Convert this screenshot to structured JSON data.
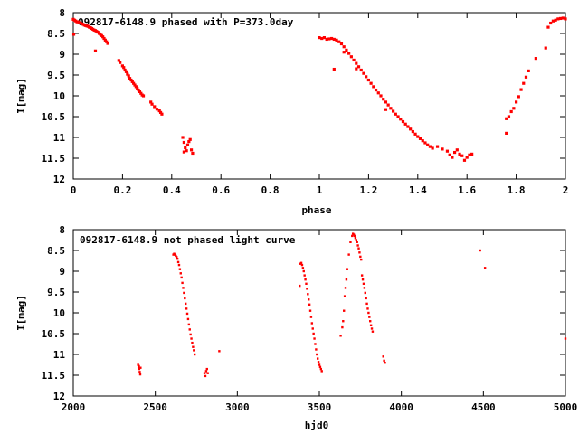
{
  "chart_data": [
    {
      "type": "scatter",
      "title": "092817-6148.9 phased with P=373.0day",
      "xlabel": "phase",
      "ylabel": "I[mag]",
      "xlim": [
        0,
        2
      ],
      "ylim": [
        8,
        12
      ],
      "y_inverted": true,
      "x_ticks": [
        "0",
        "0.2",
        "0.4",
        "0.6",
        "0.8",
        "1",
        "1.2",
        "1.4",
        "1.6",
        "1.8",
        "2"
      ],
      "y_ticks": [
        "8",
        "8.5",
        "9",
        "9.5",
        "10",
        "10.5",
        "11",
        "11.5",
        "12"
      ],
      "grid": false,
      "marker_color": "#ff0000",
      "series": [
        {
          "points": [
            [
              0.0,
              8.16
            ],
            [
              0.005,
              8.18
            ],
            [
              0.01,
              8.2
            ],
            [
              0.015,
              8.22
            ],
            [
              0.02,
              8.22
            ],
            [
              0.025,
              8.24
            ],
            [
              0.03,
              8.25
            ],
            [
              0.035,
              8.27
            ],
            [
              0.04,
              8.28
            ],
            [
              0.045,
              8.3
            ],
            [
              0.05,
              8.31
            ],
            [
              0.055,
              8.32
            ],
            [
              0.06,
              8.33
            ],
            [
              0.065,
              8.35
            ],
            [
              0.07,
              8.36
            ],
            [
              0.075,
              8.38
            ],
            [
              0.08,
              8.4
            ],
            [
              0.085,
              8.42
            ],
            [
              0.09,
              8.43
            ],
            [
              0.095,
              8.45
            ],
            [
              0.1,
              8.47
            ],
            [
              0.105,
              8.5
            ],
            [
              0.11,
              8.52
            ],
            [
              0.115,
              8.55
            ],
            [
              0.12,
              8.58
            ],
            [
              0.125,
              8.62
            ],
            [
              0.13,
              8.66
            ],
            [
              0.135,
              8.7
            ],
            [
              0.14,
              8.74
            ],
            [
              0.002,
              8.52
            ],
            [
              0.09,
              8.92
            ],
            [
              0.185,
              9.15
            ],
            [
              0.19,
              9.2
            ],
            [
              0.2,
              9.28
            ],
            [
              0.205,
              9.32
            ],
            [
              0.21,
              9.38
            ],
            [
              0.215,
              9.42
            ],
            [
              0.22,
              9.48
            ],
            [
              0.225,
              9.52
            ],
            [
              0.23,
              9.58
            ],
            [
              0.235,
              9.62
            ],
            [
              0.24,
              9.66
            ],
            [
              0.245,
              9.7
            ],
            [
              0.25,
              9.74
            ],
            [
              0.255,
              9.78
            ],
            [
              0.26,
              9.82
            ],
            [
              0.265,
              9.86
            ],
            [
              0.27,
              9.9
            ],
            [
              0.275,
              9.94
            ],
            [
              0.28,
              9.98
            ],
            [
              0.285,
              10.0
            ],
            [
              0.315,
              10.15
            ],
            [
              0.32,
              10.2
            ],
            [
              0.33,
              10.26
            ],
            [
              0.34,
              10.32
            ],
            [
              0.35,
              10.36
            ],
            [
              0.355,
              10.4
            ],
            [
              0.36,
              10.44
            ],
            [
              0.445,
              11.0
            ],
            [
              0.45,
              11.12
            ],
            [
              0.455,
              11.25
            ],
            [
              0.46,
              11.32
            ],
            [
              0.465,
              11.18
            ],
            [
              0.47,
              11.1
            ],
            [
              0.475,
              11.05
            ],
            [
              0.48,
              11.3
            ],
            [
              0.485,
              11.38
            ],
            [
              0.45,
              11.35
            ],
            [
              1.0,
              8.6
            ],
            [
              1.01,
              8.62
            ],
            [
              1.02,
              8.6
            ],
            [
              1.03,
              8.64
            ],
            [
              1.04,
              8.63
            ],
            [
              1.05,
              8.62
            ],
            [
              1.06,
              8.64
            ],
            [
              1.07,
              8.66
            ],
            [
              1.08,
              8.7
            ],
            [
              1.09,
              8.75
            ],
            [
              1.1,
              8.82
            ],
            [
              1.11,
              8.9
            ],
            [
              1.12,
              8.98
            ],
            [
              1.13,
              9.06
            ],
            [
              1.14,
              9.14
            ],
            [
              1.15,
              9.22
            ],
            [
              1.16,
              9.3
            ],
            [
              1.17,
              9.38
            ],
            [
              1.18,
              9.46
            ],
            [
              1.19,
              9.54
            ],
            [
              1.2,
              9.62
            ],
            [
              1.21,
              9.7
            ],
            [
              1.22,
              9.78
            ],
            [
              1.23,
              9.86
            ],
            [
              1.24,
              9.93
            ],
            [
              1.25,
              10.0
            ],
            [
              1.26,
              10.08
            ],
            [
              1.27,
              10.15
            ],
            [
              1.28,
              10.22
            ],
            [
              1.29,
              10.3
            ],
            [
              1.3,
              10.37
            ],
            [
              1.31,
              10.44
            ],
            [
              1.32,
              10.5
            ],
            [
              1.33,
              10.56
            ],
            [
              1.34,
              10.62
            ],
            [
              1.35,
              10.68
            ],
            [
              1.36,
              10.74
            ],
            [
              1.37,
              10.8
            ],
            [
              1.38,
              10.86
            ],
            [
              1.39,
              10.92
            ],
            [
              1.4,
              10.98
            ],
            [
              1.41,
              11.03
            ],
            [
              1.42,
              11.08
            ],
            [
              1.43,
              11.13
            ],
            [
              1.44,
              11.18
            ],
            [
              1.45,
              11.22
            ],
            [
              1.46,
              11.26
            ],
            [
              1.06,
              9.36
            ],
            [
              1.27,
              10.33
            ],
            [
              1.1,
              8.95
            ],
            [
              1.15,
              9.35
            ],
            [
              1.48,
              11.22
            ],
            [
              1.5,
              11.28
            ],
            [
              1.52,
              11.33
            ],
            [
              1.53,
              11.42
            ],
            [
              1.54,
              11.48
            ],
            [
              1.55,
              11.36
            ],
            [
              1.56,
              11.3
            ],
            [
              1.57,
              11.4
            ],
            [
              1.58,
              11.44
            ],
            [
              1.59,
              11.55
            ],
            [
              1.6,
              11.48
            ],
            [
              1.61,
              11.42
            ],
            [
              1.62,
              11.4
            ],
            [
              1.76,
              10.9
            ],
            [
              1.76,
              10.55
            ],
            [
              1.77,
              10.5
            ],
            [
              1.78,
              10.38
            ],
            [
              1.79,
              10.3
            ],
            [
              1.8,
              10.15
            ],
            [
              1.81,
              10.02
            ],
            [
              1.82,
              9.85
            ],
            [
              1.83,
              9.7
            ],
            [
              1.84,
              9.55
            ],
            [
              1.85,
              9.4
            ],
            [
              1.88,
              9.1
            ],
            [
              1.92,
              8.85
            ],
            [
              1.93,
              8.35
            ],
            [
              1.94,
              8.25
            ],
            [
              1.95,
              8.2
            ],
            [
              1.96,
              8.18
            ],
            [
              1.97,
              8.15
            ],
            [
              1.98,
              8.14
            ],
            [
              1.99,
              8.13
            ],
            [
              2.0,
              8.15
            ]
          ]
        }
      ]
    },
    {
      "type": "scatter",
      "title": "092817-6148.9 not phased light curve",
      "xlabel": "hjd0",
      "ylabel": "I[mag]",
      "xlim": [
        2000,
        5000
      ],
      "ylim": [
        8,
        12
      ],
      "y_inverted": true,
      "x_ticks": [
        "2000",
        "2500",
        "3000",
        "3500",
        "4000",
        "4500",
        "5000"
      ],
      "y_ticks": [
        "8",
        "8.5",
        "9",
        "9.5",
        "10",
        "10.5",
        "11",
        "11.5",
        "12"
      ],
      "grid": false,
      "marker_color": "#ff0000",
      "series": [
        {
          "points": [
            [
              2395,
              11.25
            ],
            [
              2398,
              11.3
            ],
            [
              2400,
              11.28
            ],
            [
              2402,
              11.35
            ],
            [
              2405,
              11.42
            ],
            [
              2408,
              11.48
            ],
            [
              2410,
              11.32
            ],
            [
              2610,
              8.6
            ],
            [
              2615,
              8.58
            ],
            [
              2620,
              8.6
            ],
            [
              2625,
              8.63
            ],
            [
              2630,
              8.66
            ],
            [
              2635,
              8.7
            ],
            [
              2640,
              8.78
            ],
            [
              2645,
              8.85
            ],
            [
              2650,
              8.95
            ],
            [
              2655,
              9.05
            ],
            [
              2660,
              9.15
            ],
            [
              2665,
              9.28
            ],
            [
              2670,
              9.4
            ],
            [
              2675,
              9.52
            ],
            [
              2680,
              9.65
            ],
            [
              2685,
              9.78
            ],
            [
              2690,
              9.9
            ],
            [
              2695,
              10.02
            ],
            [
              2700,
              10.15
            ],
            [
              2705,
              10.28
            ],
            [
              2710,
              10.4
            ],
            [
              2715,
              10.52
            ],
            [
              2720,
              10.62
            ],
            [
              2725,
              10.72
            ],
            [
              2730,
              10.82
            ],
            [
              2735,
              10.9
            ],
            [
              2740,
              11.0
            ],
            [
              2800,
              11.45
            ],
            [
              2805,
              11.52
            ],
            [
              2810,
              11.4
            ],
            [
              2815,
              11.35
            ],
            [
              2820,
              11.45
            ],
            [
              2890,
              10.92
            ],
            [
              3380,
              9.35
            ],
            [
              3385,
              8.82
            ],
            [
              3390,
              8.8
            ],
            [
              3395,
              8.85
            ],
            [
              3400,
              8.92
            ],
            [
              3405,
              9.0
            ],
            [
              3410,
              9.1
            ],
            [
              3415,
              9.2
            ],
            [
              3420,
              9.3
            ],
            [
              3425,
              9.42
            ],
            [
              3430,
              9.55
            ],
            [
              3435,
              9.68
            ],
            [
              3440,
              9.8
            ],
            [
              3445,
              9.95
            ],
            [
              3450,
              10.1
            ],
            [
              3455,
              10.25
            ],
            [
              3460,
              10.38
            ],
            [
              3465,
              10.5
            ],
            [
              3470,
              10.62
            ],
            [
              3475,
              10.75
            ],
            [
              3480,
              10.88
            ],
            [
              3485,
              11.0
            ],
            [
              3490,
              11.1
            ],
            [
              3495,
              11.18
            ],
            [
              3500,
              11.25
            ],
            [
              3505,
              11.3
            ],
            [
              3510,
              11.35
            ],
            [
              3515,
              11.4
            ],
            [
              3630,
              10.55
            ],
            [
              3640,
              10.35
            ],
            [
              3645,
              10.2
            ],
            [
              3650,
              9.95
            ],
            [
              3655,
              9.6
            ],
            [
              3660,
              9.4
            ],
            [
              3665,
              9.2
            ],
            [
              3670,
              8.95
            ],
            [
              3680,
              8.6
            ],
            [
              3690,
              8.3
            ],
            [
              3700,
              8.15
            ],
            [
              3705,
              8.1
            ],
            [
              3710,
              8.12
            ],
            [
              3715,
              8.15
            ],
            [
              3720,
              8.2
            ],
            [
              3725,
              8.25
            ],
            [
              3730,
              8.3
            ],
            [
              3735,
              8.38
            ],
            [
              3740,
              8.45
            ],
            [
              3745,
              8.55
            ],
            [
              3750,
              8.65
            ],
            [
              3755,
              8.72
            ],
            [
              3760,
              9.1
            ],
            [
              3765,
              9.2
            ],
            [
              3770,
              9.3
            ],
            [
              3775,
              9.4
            ],
            [
              3780,
              9.52
            ],
            [
              3785,
              9.65
            ],
            [
              3790,
              9.78
            ],
            [
              3795,
              9.9
            ],
            [
              3800,
              10.0
            ],
            [
              3805,
              10.1
            ],
            [
              3810,
              10.2
            ],
            [
              3815,
              10.3
            ],
            [
              3820,
              10.38
            ],
            [
              3825,
              10.45
            ],
            [
              3890,
              11.05
            ],
            [
              3895,
              11.15
            ],
            [
              3900,
              11.2
            ],
            [
              4480,
              8.5
            ],
            [
              4510,
              8.92
            ],
            [
              5000,
              10.62
            ]
          ]
        }
      ]
    }
  ]
}
